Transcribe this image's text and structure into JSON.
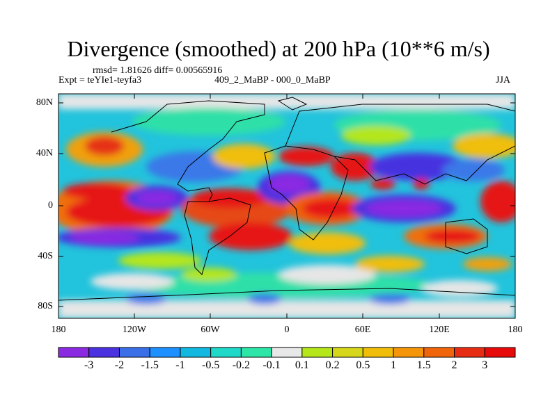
{
  "title": "Divergence (smoothed) at 200 hPa (10**6 m/s)",
  "stats": "rmsd= 1.81626 diff= 0.00565916",
  "experiment": "Expt = teYIe1-teyfa3",
  "comparison": "409_2_MaBP - 000_0_MaBP",
  "season": "JJA",
  "x_ticks": [
    "180",
    "120W",
    "60W",
    "0",
    "60E",
    "120E",
    "180"
  ],
  "y_ticks": [
    "80N",
    "40N",
    "0",
    "40S",
    "80S"
  ],
  "colorbar": {
    "labels": [
      "-3",
      "-2",
      "-1.5",
      "-1",
      "-0.5",
      "-0.2",
      "-0.1",
      "0.1",
      "0.2",
      "0.5",
      "1",
      "1.5",
      "2",
      "3"
    ],
    "colors": [
      "#8a2be2",
      "#4b32e0",
      "#3a6fe8",
      "#1e90ff",
      "#12b8e0",
      "#20d8c8",
      "#2ee5a8",
      "#e8e8e8",
      "#b4e61a",
      "#d6d61a",
      "#f0be0a",
      "#f5960a",
      "#f0640a",
      "#e62d14",
      "#e60a0a"
    ]
  },
  "chart_data": {
    "type": "heatmap",
    "title": "Divergence (smoothed) at 200 hPa (10**6 m/s)",
    "x_range": [
      "180W",
      "180E"
    ],
    "y_range": [
      "90S",
      "90N"
    ],
    "levels": [
      -3,
      -2,
      -1.5,
      -1,
      -0.5,
      -0.2,
      -0.1,
      0.1,
      0.2,
      0.5,
      1,
      1.5,
      2,
      3
    ],
    "units": "10**6 m/s"
  }
}
